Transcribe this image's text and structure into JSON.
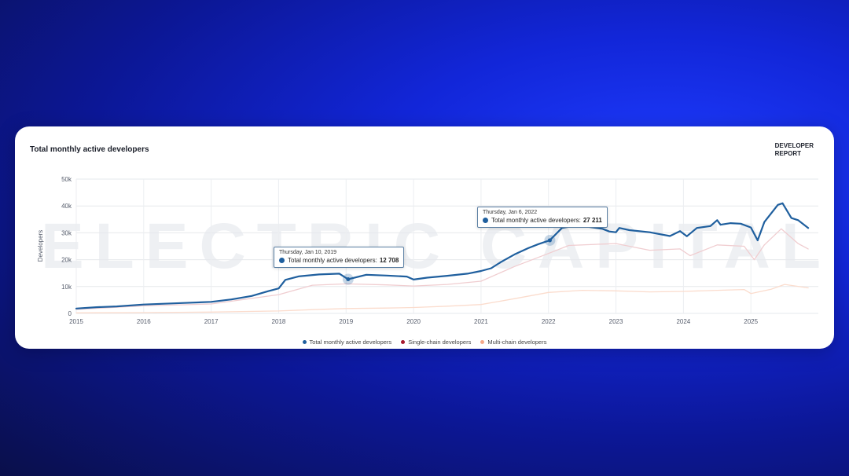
{
  "card": {
    "title": "Total monthly active developers",
    "brand_line1": "DEVELOPER",
    "brand_line2": "REPORT",
    "watermark": "ELECTRIC CAPITAL"
  },
  "colors": {
    "total": "#1f5f9e",
    "single": "#f0cdd0",
    "multi": "#fbdccd",
    "single_legend": "#a6192e",
    "multi_legend": "#f5a98a"
  },
  "tooltips": [
    {
      "date": "Thursday, Jan 10, 2019",
      "label": "Total monthly active developers:",
      "value": "12 708"
    },
    {
      "date": "Thursday, Jan 6, 2022",
      "label": "Total monthly active developers:",
      "value": "27 211"
    }
  ],
  "legend": [
    {
      "label": "Total monthly active developers",
      "color": "#1f5f9e"
    },
    {
      "label": "Single-chain developers",
      "color": "#a6192e"
    },
    {
      "label": "Multi-chain developers",
      "color": "#f5a98a"
    }
  ],
  "chart_data": {
    "type": "line",
    "title": "Total monthly active developers",
    "ylabel": "Developers",
    "xlabel": "",
    "xlim": [
      2015,
      2026.0
    ],
    "ylim": [
      0,
      50000
    ],
    "yticks": [
      0,
      10000,
      20000,
      30000,
      40000,
      50000
    ],
    "ytick_labels": [
      "0",
      "10k",
      "20k",
      "30k",
      "40k",
      "50k"
    ],
    "xticks": [
      2015,
      2016,
      2017,
      2018,
      2019,
      2020,
      2021,
      2022,
      2023,
      2024,
      2025
    ],
    "xtick_labels": [
      "2015",
      "2016",
      "2017",
      "2018",
      "2019",
      "2020",
      "2021",
      "2022",
      "2023",
      "2024",
      "2025"
    ],
    "grid": true,
    "legend_position": "bottom",
    "series": [
      {
        "name": "Total monthly active developers",
        "x": [
          2015.0,
          2015.3,
          2015.6,
          2016.0,
          2016.3,
          2016.6,
          2017.0,
          2017.3,
          2017.6,
          2017.85,
          2018.0,
          2018.1,
          2018.3,
          2018.6,
          2018.9,
          2019.03,
          2019.3,
          2019.6,
          2019.9,
          2020.0,
          2020.2,
          2020.5,
          2020.8,
          2021.0,
          2021.15,
          2021.3,
          2021.5,
          2021.7,
          2021.85,
          2022.02,
          2022.2,
          2022.4,
          2022.6,
          2022.8,
          2022.9,
          2023.0,
          2023.05,
          2023.2,
          2023.5,
          2023.8,
          2023.95,
          2024.05,
          2024.2,
          2024.4,
          2024.5,
          2024.55,
          2024.7,
          2024.85,
          2025.0,
          2025.1,
          2025.2,
          2025.4,
          2025.47,
          2025.6,
          2025.7,
          2025.85
        ],
        "y": [
          1800,
          2300,
          2600,
          3300,
          3600,
          3900,
          4300,
          5200,
          6500,
          8300,
          9300,
          12500,
          13800,
          14500,
          14800,
          12708,
          14400,
          14100,
          13700,
          12600,
          13300,
          14000,
          14800,
          15800,
          16800,
          19200,
          22000,
          24300,
          25800,
          27211,
          31800,
          32700,
          32200,
          31500,
          30500,
          30200,
          31800,
          31000,
          30200,
          28800,
          30600,
          28700,
          31800,
          32500,
          34700,
          33000,
          33600,
          33400,
          32000,
          27200,
          34000,
          40400,
          41000,
          35500,
          34700,
          31800
        ]
      },
      {
        "name": "Single-chain developers",
        "x": [
          2015.0,
          2016.0,
          2017.0,
          2018.0,
          2018.5,
          2019.0,
          2019.6,
          2020.0,
          2020.5,
          2021.0,
          2021.5,
          2022.0,
          2022.3,
          2022.7,
          2023.0,
          2023.5,
          2023.95,
          2024.1,
          2024.5,
          2024.9,
          2025.05,
          2025.2,
          2025.45,
          2025.7,
          2025.85
        ],
        "y": [
          1500,
          2800,
          3500,
          7000,
          10500,
          11000,
          10600,
          10200,
          10800,
          12000,
          17500,
          22300,
          25300,
          25700,
          26000,
          23500,
          24000,
          21500,
          25500,
          25000,
          20000,
          25500,
          31500,
          26000,
          24000
        ]
      },
      {
        "name": "Multi-chain developers",
        "x": [
          2015.0,
          2016.0,
          2017.0,
          2018.0,
          2018.5,
          2019.0,
          2019.6,
          2020.0,
          2020.5,
          2021.0,
          2021.5,
          2022.0,
          2022.5,
          2023.0,
          2023.5,
          2024.0,
          2024.5,
          2024.9,
          2025.0,
          2025.3,
          2025.5,
          2025.85
        ],
        "y": [
          200,
          300,
          500,
          900,
          1400,
          1800,
          2000,
          2200,
          2700,
          3300,
          5500,
          7800,
          8600,
          8400,
          8000,
          8200,
          8600,
          8900,
          7400,
          9000,
          10800,
          9500
        ]
      }
    ],
    "highlight_points": [
      {
        "x": 2019.03,
        "y": 12708
      },
      {
        "x": 2022.02,
        "y": 27211
      }
    ]
  }
}
